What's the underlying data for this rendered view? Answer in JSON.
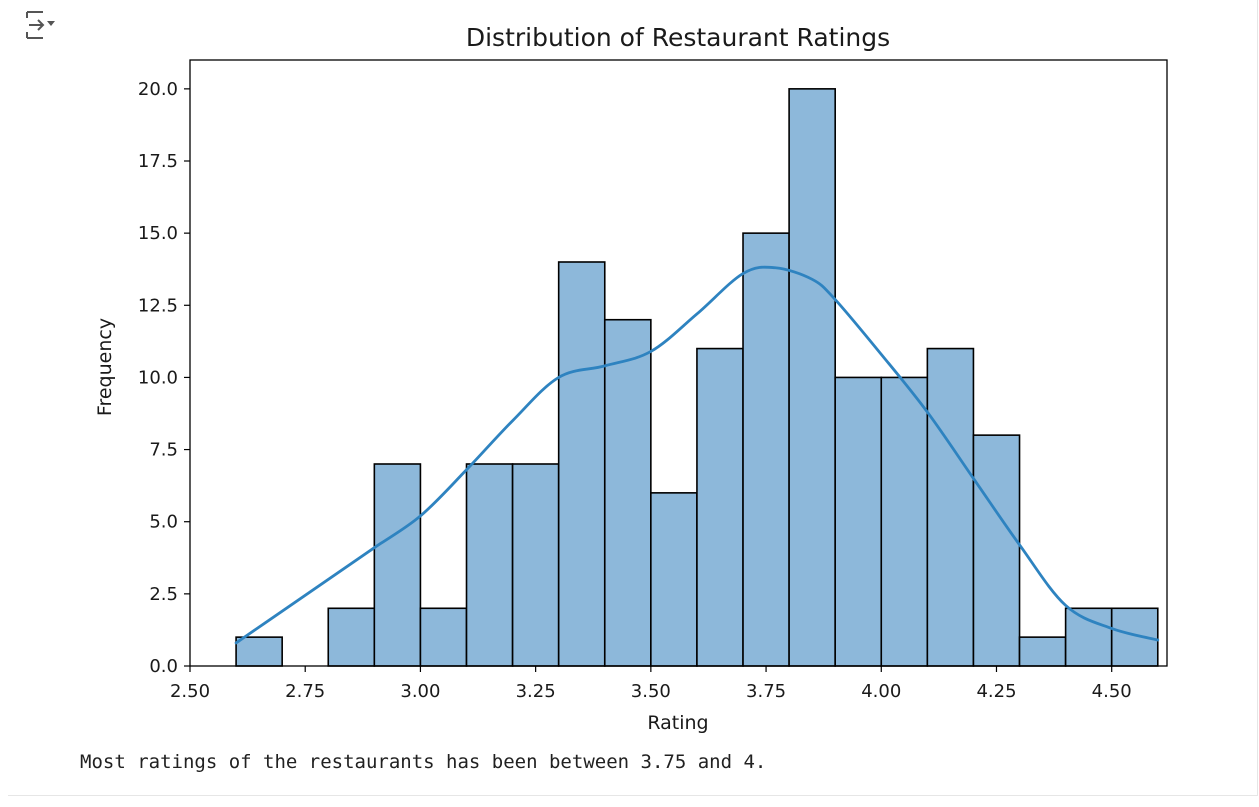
{
  "output": {
    "toggle_icon": "output-collapse-icon",
    "caption": "Most ratings of the restaurants has been between 3.75 and 4."
  },
  "chart_data": {
    "type": "bar",
    "title": "Distribution of Restaurant Ratings",
    "xlabel": "Rating",
    "ylabel": "Frequency",
    "xlim": [
      2.5,
      4.62
    ],
    "ylim": [
      0,
      21
    ],
    "xticks": [
      2.5,
      2.75,
      3.0,
      3.25,
      3.5,
      3.75,
      4.0,
      4.25,
      4.5
    ],
    "xtick_labels": [
      "2.50",
      "2.75",
      "3.00",
      "3.25",
      "3.50",
      "3.75",
      "4.00",
      "4.25",
      "4.50"
    ],
    "yticks": [
      0,
      2.5,
      5,
      7.5,
      10,
      12.5,
      15,
      17.5,
      20
    ],
    "ytick_labels": [
      "0.0",
      "2.5",
      "5.0",
      "7.5",
      "10.0",
      "12.5",
      "15.0",
      "17.5",
      "20.0"
    ],
    "bins": {
      "edges": [
        2.6,
        2.7,
        2.8,
        2.9,
        3.0,
        3.1,
        3.2,
        3.3,
        3.4,
        3.5,
        3.6,
        3.7,
        3.8,
        3.9,
        4.0,
        4.1,
        4.2,
        4.3,
        4.4,
        4.5,
        4.6
      ],
      "counts": [
        1,
        0,
        2,
        7,
        2,
        7,
        7,
        14,
        12,
        6,
        11,
        15,
        20,
        10,
        10,
        11,
        8,
        1,
        2,
        2
      ]
    },
    "kde": {
      "x": [
        2.6,
        2.7,
        2.8,
        2.9,
        3.0,
        3.1,
        3.2,
        3.3,
        3.4,
        3.5,
        3.6,
        3.7,
        3.77,
        3.85,
        3.9,
        4.0,
        4.1,
        4.2,
        4.3,
        4.4,
        4.5,
        4.6
      ],
      "y": [
        0.8,
        1.9,
        3.0,
        4.1,
        5.2,
        6.8,
        8.5,
        10.0,
        10.4,
        10.9,
        12.2,
        13.6,
        13.8,
        13.4,
        12.7,
        10.8,
        8.8,
        6.5,
        4.2,
        2.1,
        1.3,
        0.9
      ]
    },
    "colors": {
      "bar_fill": "#8db8da",
      "bar_edge": "#000000",
      "kde_line": "#2e83c0"
    },
    "grid": false,
    "legend": "none"
  }
}
